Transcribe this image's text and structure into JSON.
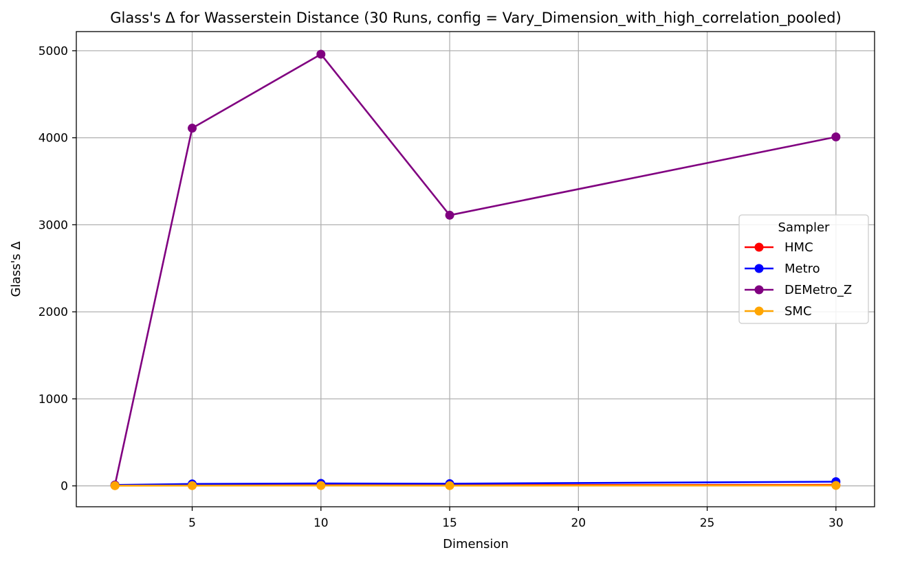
{
  "chart_data": {
    "type": "line",
    "title": "Glass's Δ for Wasserstein Distance (30 Runs, config = Vary_Dimension_with_high_correlation_pooled)",
    "xlabel": "Dimension",
    "ylabel": "Glass's Δ",
    "x": [
      2,
      5,
      10,
      15,
      30
    ],
    "xlim": [
      0.5,
      31.5
    ],
    "ylim": [
      -240,
      5220
    ],
    "xticks": [
      5,
      10,
      15,
      20,
      25,
      30
    ],
    "yticks": [
      0,
      1000,
      2000,
      3000,
      4000,
      5000
    ],
    "grid": true,
    "legend": {
      "title": "Sampler",
      "placement": "center-right"
    },
    "series": [
      {
        "name": "HMC",
        "color": "#ff0000",
        "values": [
          5,
          8,
          10,
          8,
          12
        ]
      },
      {
        "name": "Metro",
        "color": "#0000ff",
        "values": [
          10,
          22,
          28,
          25,
          48
        ]
      },
      {
        "name": "DEMetro_Z",
        "color": "#800080",
        "values": [
          10,
          4110,
          4960,
          3110,
          4010
        ]
      },
      {
        "name": "SMC",
        "color": "#ffa500",
        "values": [
          2,
          3,
          4,
          3,
          5
        ]
      }
    ]
  }
}
